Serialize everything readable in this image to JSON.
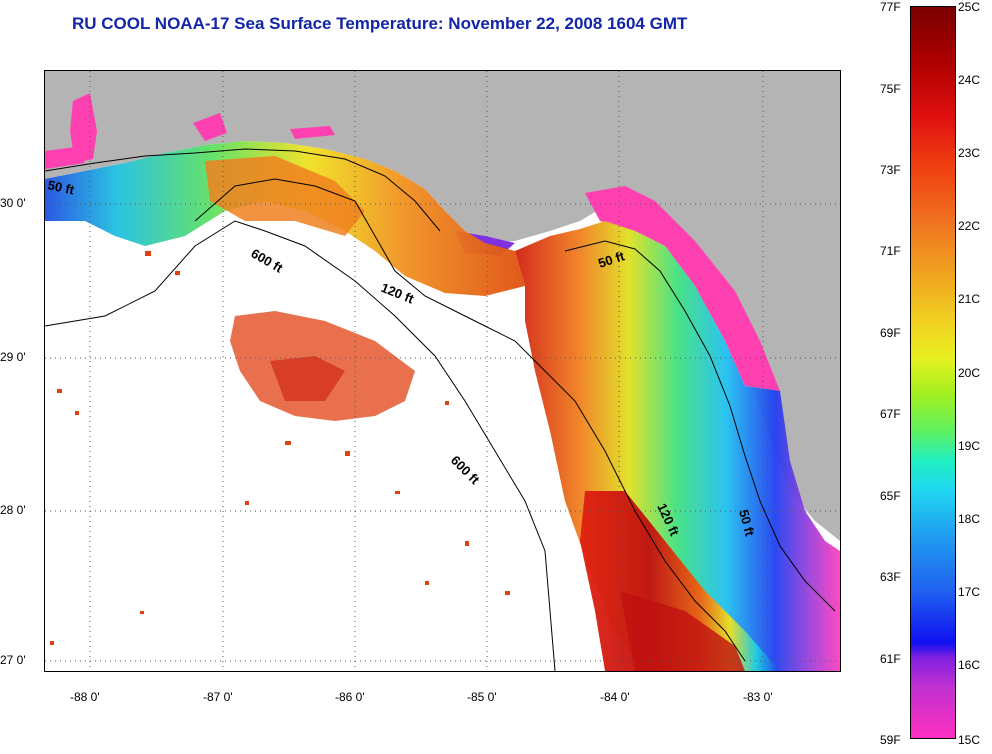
{
  "title": "RU COOL  NOAA-17  Sea Surface Temperature:  November 22, 2008 1604 GMT",
  "longitude_labels": [
    "-88 0'",
    "-87 0'",
    "-86 0'",
    "-85 0'",
    "-84 0'",
    "-83 0'"
  ],
  "latitude_labels": [
    "30 0'",
    "29 0'",
    "28 0'",
    "27 0'"
  ],
  "contour_labels": {
    "c50_west": "50 ft",
    "c600_north": "600 ft",
    "c120_north": "120 ft",
    "c50_east": "50 ft",
    "c600_south": "600 ft",
    "c120_east": "120 ft",
    "c50_south": "50 ft"
  },
  "colorbar": {
    "fahrenheit": [
      "77F",
      "75F",
      "73F",
      "71F",
      "69F",
      "67F",
      "65F",
      "63F",
      "61F",
      "59F"
    ],
    "celsius": [
      "25C",
      "24C",
      "23C",
      "22C",
      "21C",
      "20C",
      "19C",
      "18C",
      "17C",
      "16C",
      "15C"
    ]
  },
  "colors": {
    "title": "#1426a8",
    "land": "#b4b4b4",
    "no_data": "#ffffff"
  }
}
